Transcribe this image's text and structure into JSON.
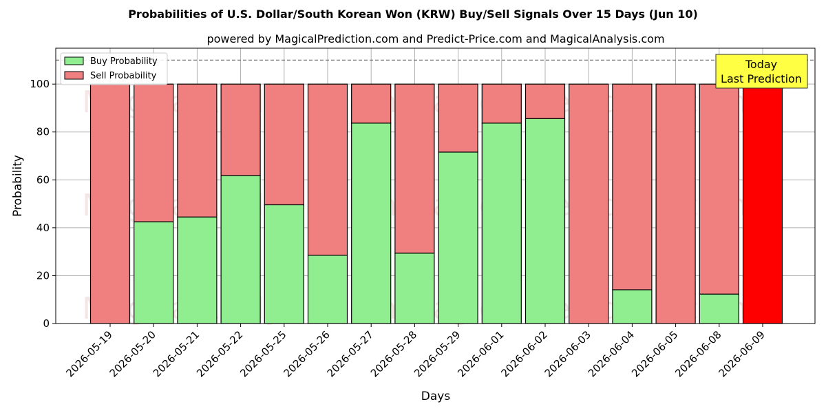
{
  "chart_data": {
    "type": "bar",
    "stacked": true,
    "title": "Probabilities of U.S. Dollar/South Korean Won (KRW) Buy/Sell Signals Over 15 Days (Jun 10)",
    "subtitle": "powered by MagicalPrediction.com and Predict-Price.com and MagicalAnalysis.com",
    "xlabel": "Days",
    "ylabel": "Probability",
    "ylim": [
      0,
      115
    ],
    "yticks": [
      0,
      20,
      40,
      60,
      80,
      100
    ],
    "grid": true,
    "legend_position": "top-left",
    "reference_line": 110,
    "categories": [
      "2026-05-19",
      "2026-05-20",
      "2026-05-21",
      "2026-05-22",
      "2026-05-25",
      "2026-05-26",
      "2026-05-27",
      "2026-05-28",
      "2026-05-29",
      "2026-06-01",
      "2026-06-02",
      "2026-06-03",
      "2026-06-04",
      "2026-06-05",
      "2026-06-08",
      "2026-06-09"
    ],
    "series": [
      {
        "name": "Buy Probability",
        "color": "#90ee90",
        "values": [
          0,
          42.5,
          44.5,
          61.8,
          49.6,
          28.5,
          83.7,
          29.4,
          71.6,
          83.7,
          85.6,
          0,
          14.1,
          0,
          12.3,
          0
        ]
      },
      {
        "name": "Sell Probability",
        "color": "#f08080",
        "values": [
          100,
          57.5,
          55.5,
          38.2,
          50.4,
          71.5,
          16.3,
          70.6,
          28.4,
          16.3,
          14.4,
          100,
          85.9,
          100,
          87.7,
          100
        ]
      }
    ],
    "highlight": {
      "index": 15,
      "color": "#ff0000"
    },
    "annotation": {
      "lines": [
        "Today",
        "Last Prediction"
      ],
      "background": "#ffff44"
    },
    "watermarks": [
      "MagicalAnalysis.com",
      "MagicalPrediction.com"
    ]
  }
}
